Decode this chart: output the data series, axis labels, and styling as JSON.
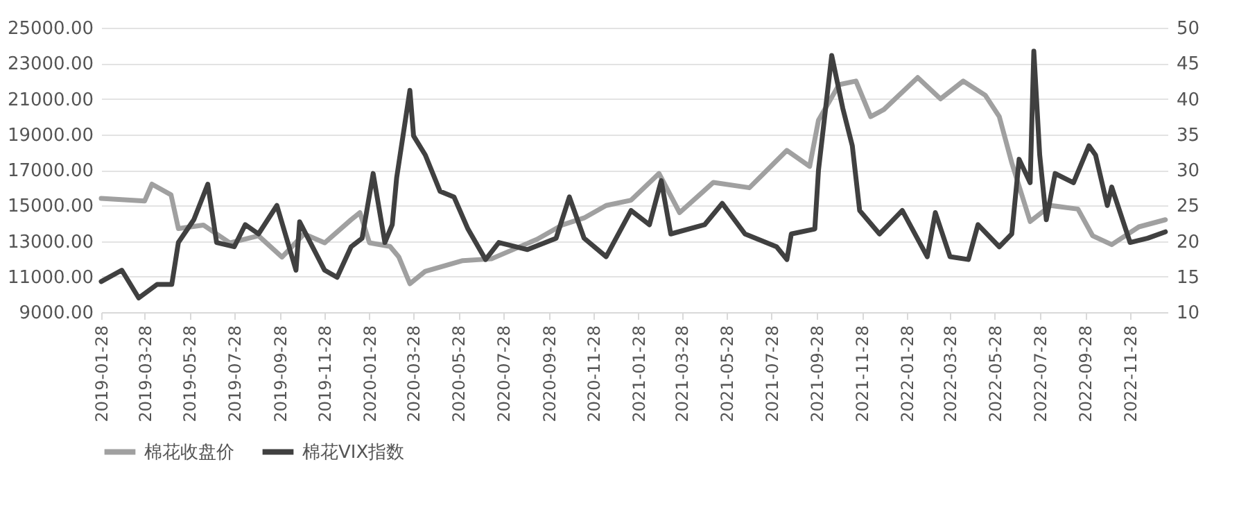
{
  "chart_data": {
    "type": "line",
    "legend": "bottom",
    "grid": "y",
    "line_style": "solid",
    "marker": "none",
    "xlim": [
      "2019-01-28",
      "2023-01-18"
    ],
    "xticks": [
      "2019-01-28",
      "2019-03-28",
      "2019-05-28",
      "2019-07-28",
      "2019-09-28",
      "2019-11-28",
      "2020-01-28",
      "2020-03-28",
      "2020-05-28",
      "2020-07-28",
      "2020-09-28",
      "2020-11-28",
      "2021-01-28",
      "2021-03-28",
      "2021-05-28",
      "2021-07-28",
      "2021-09-28",
      "2021-11-28",
      "2022-01-28",
      "2022-03-28",
      "2022-05-28",
      "2022-07-28",
      "2022-09-28",
      "2022-11-28"
    ],
    "ylim": [
      9000,
      25000
    ],
    "yticks": [
      {
        "value": 9000,
        "label": "9000.00"
      },
      {
        "value": 11000,
        "label": "11000.00"
      },
      {
        "value": 13000,
        "label": "13000.00"
      },
      {
        "value": 15000,
        "label": "15000.00"
      },
      {
        "value": 17000,
        "label": "17000.00"
      },
      {
        "value": 19000,
        "label": "19000.00"
      },
      {
        "value": 21000,
        "label": "21000.00"
      },
      {
        "value": 23000,
        "label": "23000.00"
      },
      {
        "value": 25000,
        "label": "25000.00"
      }
    ],
    "y2lim": [
      10,
      50
    ],
    "y2ticks": [
      10,
      15,
      20,
      25,
      30,
      35,
      40,
      45,
      50
    ],
    "series": [
      {
        "name": "棉花收盘价",
        "color": "#a0a0a0",
        "axis": "y",
        "x": [
          "2019-01-28",
          "2019-03-28",
          "2019-04-07",
          "2019-05-03",
          "2019-05-13",
          "2019-06-16",
          "2019-07-22",
          "2019-08-30",
          "2019-10-01",
          "2019-10-31",
          "2019-11-28",
          "2020-01-03",
          "2020-01-15",
          "2020-01-28",
          "2020-02-25",
          "2020-03-08",
          "2020-03-23",
          "2020-04-13",
          "2020-06-03",
          "2020-07-12",
          "2020-09-12",
          "2020-10-16",
          "2020-11-15",
          "2020-12-15",
          "2021-01-18",
          "2021-02-25",
          "2021-03-25",
          "2021-05-10",
          "2021-06-28",
          "2021-08-18",
          "2021-09-18",
          "2021-09-30",
          "2021-10-28",
          "2021-11-20",
          "2021-12-10",
          "2021-12-28",
          "2022-02-12",
          "2022-03-15",
          "2022-04-15",
          "2022-05-15",
          "2022-06-03",
          "2022-06-20",
          "2022-07-15",
          "2022-08-12",
          "2022-09-18",
          "2022-10-08",
          "2022-11-03",
          "2022-12-10",
          "2023-01-15"
        ],
        "values": [
          15400,
          15250,
          16200,
          15600,
          13700,
          13900,
          12900,
          13300,
          12100,
          13400,
          12900,
          14200,
          14600,
          12900,
          12700,
          12100,
          10600,
          11300,
          11900,
          12000,
          13100,
          13900,
          14300,
          15000,
          15300,
          16800,
          14600,
          16300,
          16000,
          18100,
          17200,
          19800,
          21800,
          22000,
          20000,
          20400,
          22200,
          21000,
          22000,
          21200,
          20000,
          17400,
          14100,
          15000,
          14800,
          13300,
          12800,
          13800,
          14200
        ]
      },
      {
        "name": "棉花VIX指数",
        "color": "#404040",
        "axis": "y2",
        "x": [
          "2019-01-28",
          "2019-02-25",
          "2019-03-20",
          "2019-04-14",
          "2019-05-04",
          "2019-05-13",
          "2019-06-03",
          "2019-06-22",
          "2019-07-04",
          "2019-07-28",
          "2019-08-12",
          "2019-08-30",
          "2019-09-24",
          "2019-10-20",
          "2019-10-25",
          "2019-11-28",
          "2019-12-15",
          "2020-01-03",
          "2020-01-18",
          "2020-02-02",
          "2020-02-18",
          "2020-02-28",
          "2020-03-05",
          "2020-03-23",
          "2020-03-28",
          "2020-04-13",
          "2020-05-03",
          "2020-05-22",
          "2020-06-10",
          "2020-07-04",
          "2020-07-22",
          "2020-08-30",
          "2020-10-08",
          "2020-10-26",
          "2020-11-15",
          "2020-12-15",
          "2021-01-18",
          "2021-02-12",
          "2021-02-28",
          "2021-03-13",
          "2021-04-28",
          "2021-05-22",
          "2021-06-22",
          "2021-08-04",
          "2021-08-18",
          "2021-08-24",
          "2021-09-25",
          "2021-09-30",
          "2021-10-18",
          "2021-11-02",
          "2021-11-15",
          "2021-11-25",
          "2021-12-22",
          "2022-01-22",
          "2022-02-25",
          "2022-03-08",
          "2022-03-28",
          "2022-04-22",
          "2022-05-05",
          "2022-06-03",
          "2022-06-20",
          "2022-06-30",
          "2022-07-15",
          "2022-07-20",
          "2022-07-28",
          "2022-08-06",
          "2022-08-18",
          "2022-09-12",
          "2022-10-03",
          "2022-10-12",
          "2022-10-28",
          "2022-11-03",
          "2022-11-28",
          "2022-12-22",
          "2023-01-15"
        ],
        "values": [
          14.3,
          15.9,
          12,
          13.9,
          13.9,
          19.8,
          23,
          28,
          19.8,
          19.2,
          22.3,
          21,
          25,
          15.9,
          22.7,
          15.9,
          14.9,
          19.2,
          20.4,
          29.5,
          19.8,
          22.3,
          28.9,
          41.2,
          34.8,
          32.1,
          27,
          26.2,
          21.7,
          17.4,
          19.8,
          18.8,
          20.4,
          26.2,
          20.4,
          17.8,
          24.3,
          22.3,
          28.5,
          21,
          22.3,
          25.3,
          21,
          19.2,
          17.4,
          21,
          21.7,
          30,
          46.1,
          38.7,
          33.4,
          24.3,
          21,
          24.3,
          17.8,
          24,
          17.8,
          17.4,
          22.3,
          19.2,
          21,
          31.5,
          28.2,
          46.7,
          32.1,
          23,
          29.5,
          28.2,
          33.4,
          32.1,
          25,
          27.6,
          19.8,
          20.4,
          21.3
        ]
      }
    ]
  }
}
